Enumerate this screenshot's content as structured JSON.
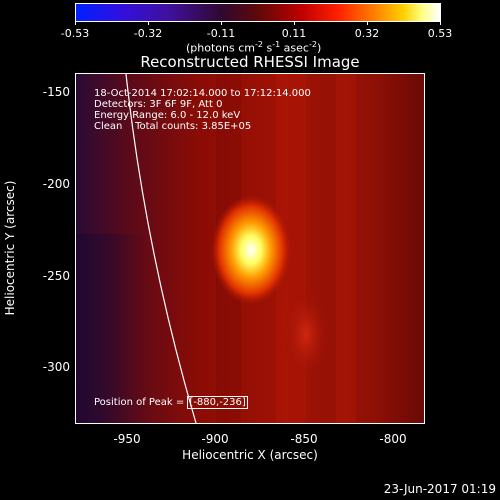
{
  "colorbar": {
    "ticks": [
      "-0.53",
      "-0.32",
      "-0.11",
      "0.11",
      "0.32",
      "0.53"
    ],
    "units_base": "(photons cm",
    "units_exp1": "-2",
    "units_mid1": " s",
    "units_exp2": "-1",
    "units_mid2": " asec",
    "units_exp3": "-2",
    "units_end": ")"
  },
  "title": "Reconstructed RHESSI Image",
  "axes": {
    "xlabel": "Heliocentric X (arcsec)",
    "ylabel": "Heliocentric Y (arcsec)",
    "xticks": [
      "-950",
      "-900",
      "-850",
      "-800"
    ],
    "yticks": [
      "-150",
      "-200",
      "-250",
      "-300"
    ]
  },
  "info": {
    "line1": "18-Oct-2014 17:02:14.000 to 17:12:14.000",
    "line2": "Detectors: 3F 6F 9F, Att 0",
    "line3": "Energy Range: 6.0 - 12.0 keV",
    "line4": "Clean    Total counts: 3.85E+05",
    "peak_label": "Position of Peak = ",
    "peak_value": "[-880,-236]"
  },
  "timestamp": "23-Jun-2017 01:19"
}
